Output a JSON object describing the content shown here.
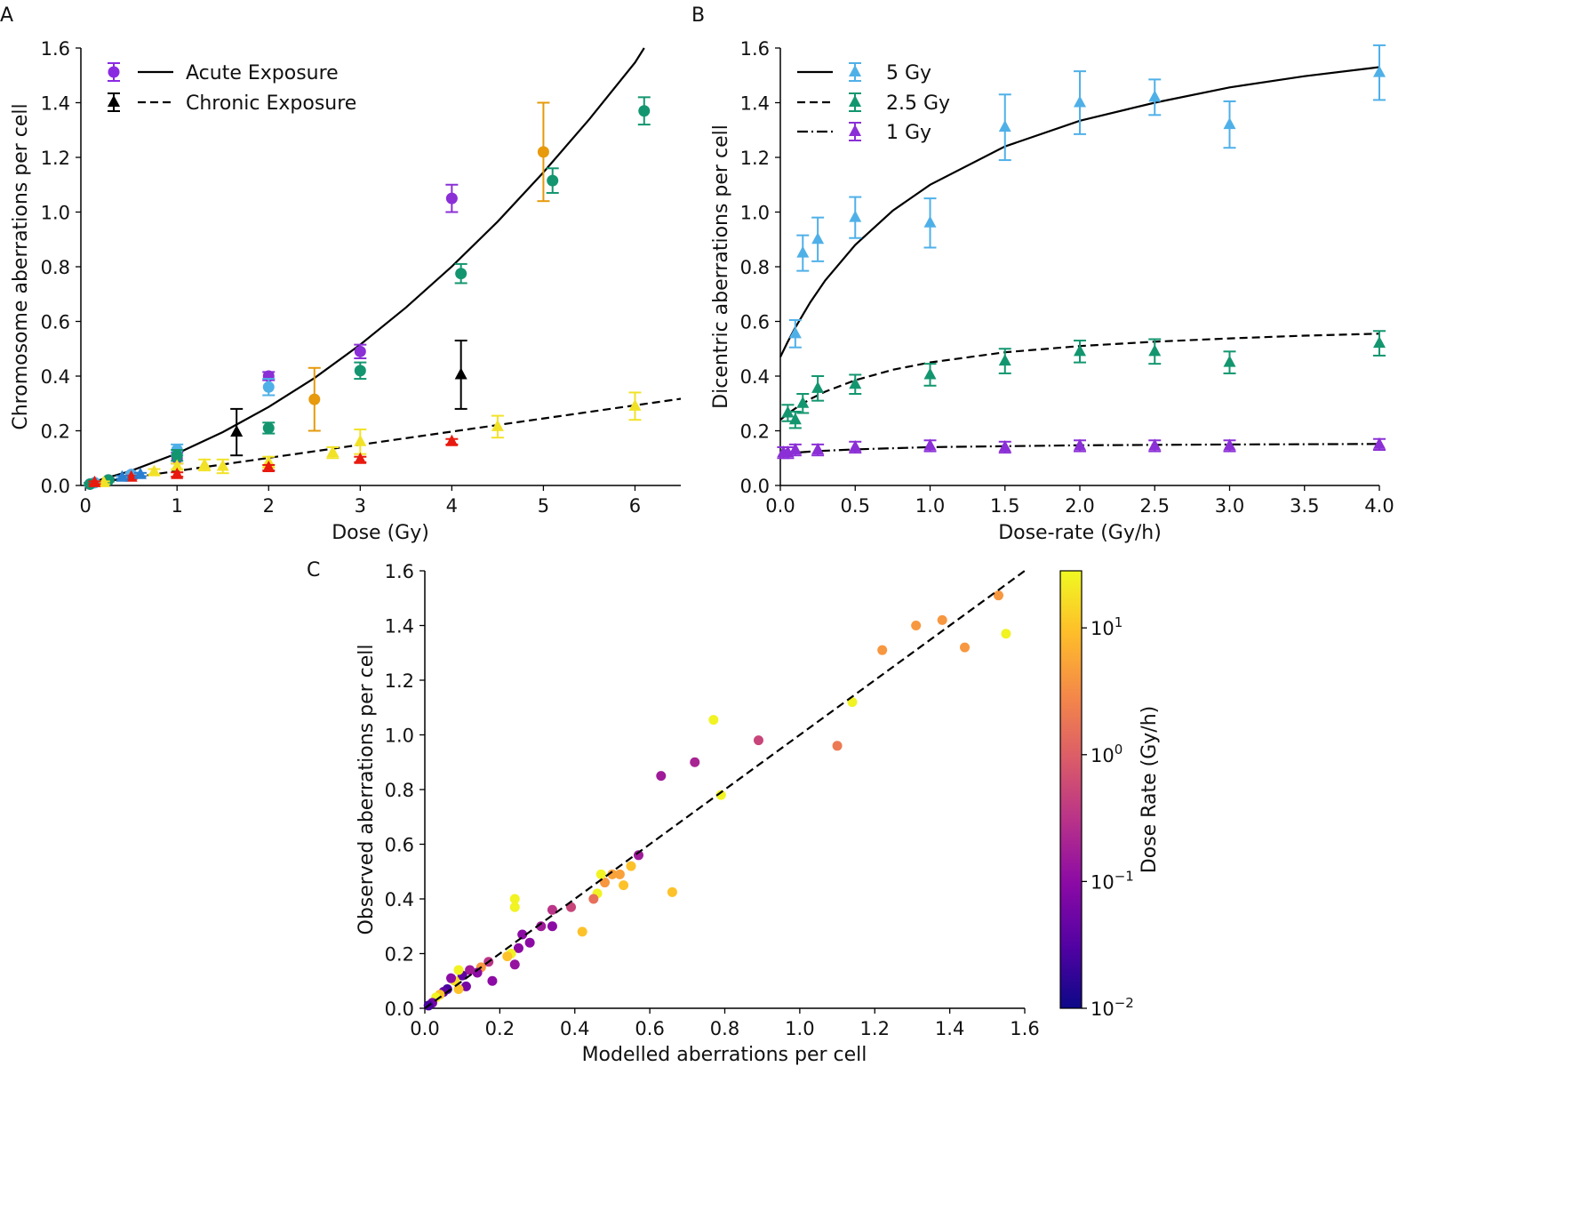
{
  "chart_data": [
    {
      "panel": "A",
      "type": "scatter",
      "xlabel": "Dose (Gy)",
      "ylabel": "Chromosome aberrations per cell",
      "xlim": [
        -0.05,
        6.5
      ],
      "ylim": [
        0,
        1.6
      ],
      "xticks": [
        0,
        1,
        2,
        3,
        4,
        5,
        6
      ],
      "yticks": [
        0.0,
        0.2,
        0.4,
        0.6,
        0.8,
        1.0,
        1.2,
        1.4,
        1.6
      ],
      "legend": {
        "position": "top-left",
        "entries": [
          {
            "label": "Acute Exposure",
            "line": "solid",
            "marker": "circle",
            "color": "#8a2be2"
          },
          {
            "label": "Chronic Exposure",
            "line": "dashed",
            "marker": "triangle",
            "color": "#000000"
          }
        ]
      },
      "lines": [
        {
          "name": "Acute Exposure",
          "style": "solid",
          "x": [
            0,
            0.5,
            1,
            1.5,
            2,
            2.5,
            3,
            3.5,
            4,
            4.5,
            5,
            5.5,
            6,
            6.1
          ],
          "y": [
            0.005,
            0.054,
            0.117,
            0.195,
            0.287,
            0.393,
            0.515,
            0.651,
            0.801,
            0.965,
            1.145,
            1.339,
            1.547,
            1.6
          ]
        },
        {
          "name": "Chronic Exposure",
          "style": "dashed",
          "x": [
            0,
            6.5
          ],
          "y": [
            0.005,
            0.317
          ]
        }
      ],
      "series": [
        {
          "color": "#8b2fd6",
          "marker": "circle",
          "points": [
            [
              0.05,
              0.005,
              0.005
            ],
            [
              0.25,
              0.02,
              0.005
            ],
            [
              0.5,
              0.04,
              0.007
            ],
            [
              1,
              0.1,
              0.02
            ],
            [
              2,
              0.4,
              0.015
            ],
            [
              3,
              0.49,
              0.025
            ],
            [
              4,
              1.05,
              0.05
            ]
          ]
        },
        {
          "color": "#4fb0e8",
          "marker": "circle",
          "points": [
            [
              0.1,
              0.01,
              0.005
            ],
            [
              0.5,
              0.04,
              0.007
            ],
            [
              1,
              0.13,
              0.02
            ],
            [
              2,
              0.36,
              0.03
            ]
          ]
        },
        {
          "color": "#13966f",
          "marker": "circle",
          "points": [
            [
              0.05,
              0.005,
              0.004
            ],
            [
              0.25,
              0.02,
              0.005
            ],
            [
              1,
              0.11,
              0.02
            ],
            [
              2,
              0.21,
              0.02
            ],
            [
              3,
              0.42,
              0.03
            ],
            [
              4.1,
              0.775,
              0.035
            ],
            [
              5.1,
              1.115,
              0.045
            ],
            [
              6.1,
              1.37,
              0.05
            ]
          ]
        },
        {
          "color": "#e69a0c",
          "marker": "circle",
          "points": [
            [
              2.5,
              0.315,
              0.115
            ],
            [
              5,
              1.22,
              0.18
            ]
          ]
        },
        {
          "color": "#000000",
          "marker": "triangle",
          "points": [
            [
              1.65,
              0.195,
              0.085
            ],
            [
              4.1,
              0.405,
              0.125
            ]
          ]
        },
        {
          "color": "#f2e227",
          "marker": "triangle",
          "points": [
            [
              0.2,
              0.01,
              0.005
            ],
            [
              0.75,
              0.05,
              0.01
            ],
            [
              1,
              0.07,
              0.01
            ],
            [
              1.3,
              0.075,
              0.02
            ],
            [
              1.5,
              0.07,
              0.025
            ],
            [
              2,
              0.085,
              0.02
            ],
            [
              2.7,
              0.12,
              0.02
            ],
            [
              3,
              0.16,
              0.045
            ],
            [
              4.5,
              0.215,
              0.04
            ],
            [
              6,
              0.29,
              0.05
            ]
          ]
        },
        {
          "color": "#e8190e",
          "marker": "triangle",
          "points": [
            [
              0.1,
              0.01,
              0.005
            ],
            [
              0.5,
              0.03,
              0.006
            ],
            [
              1,
              0.04,
              0.008
            ],
            [
              2,
              0.065,
              0.01
            ],
            [
              3,
              0.095,
              0.01
            ],
            [
              4,
              0.16,
              0.01
            ]
          ]
        },
        {
          "color": "#2a7fd0",
          "marker": "triangle",
          "points": [
            [
              0.4,
              0.03,
              0.005
            ],
            [
              0.6,
              0.04,
              0.006
            ]
          ]
        }
      ]
    },
    {
      "panel": "B",
      "type": "scatter",
      "xlabel": "Dose-rate (Gy/h)",
      "ylabel": "Dicentric aberrations per cell",
      "xlim": [
        0,
        4.0
      ],
      "ylim": [
        0,
        1.6
      ],
      "xticks": [
        0.0,
        0.5,
        1.0,
        1.5,
        2.0,
        2.5,
        3.0,
        3.5,
        4.0
      ],
      "yticks": [
        0.0,
        0.2,
        0.4,
        0.6,
        0.8,
        1.0,
        1.2,
        1.4,
        1.6
      ],
      "legend": {
        "position": "top-left",
        "entries": [
          {
            "label": "5 Gy",
            "line": "solid",
            "color": "#4fb0e8"
          },
          {
            "label": "2.5 Gy",
            "line": "dashed",
            "color": "#13966f"
          },
          {
            "label": "1 Gy",
            "line": "dashdot",
            "color": "#8b2fd6"
          }
        ]
      },
      "lines": [
        {
          "name": "5 Gy",
          "style": "solid",
          "x": [
            0,
            0.05,
            0.1,
            0.2,
            0.3,
            0.5,
            0.75,
            1,
            1.5,
            2,
            2.5,
            3,
            3.5,
            4
          ],
          "y": [
            0.47,
            0.526,
            0.578,
            0.67,
            0.75,
            0.88,
            1.005,
            1.1,
            1.24,
            1.334,
            1.4,
            1.456,
            1.497,
            1.53
          ]
        },
        {
          "name": "2.5 Gy",
          "style": "dashed",
          "x": [
            0,
            0.05,
            0.1,
            0.2,
            0.3,
            0.5,
            0.75,
            1,
            1.5,
            2,
            2.5,
            3,
            3.5,
            4
          ],
          "y": [
            0.24,
            0.262,
            0.282,
            0.316,
            0.343,
            0.385,
            0.423,
            0.45,
            0.487,
            0.51,
            0.526,
            0.538,
            0.548,
            0.555
          ]
        },
        {
          "name": "1 Gy",
          "style": "dashdot",
          "x": [
            0,
            0.1,
            0.25,
            0.5,
            1,
            2,
            3,
            4
          ],
          "y": [
            0.115,
            0.12,
            0.126,
            0.132,
            0.14,
            0.147,
            0.15,
            0.152
          ]
        }
      ],
      "series": [
        {
          "name": "5 Gy",
          "color": "#4fb0e8",
          "marker": "triangle",
          "points": [
            [
              0.1,
              0.555,
              0.05
            ],
            [
              0.15,
              0.85,
              0.065
            ],
            [
              0.25,
              0.9,
              0.08
            ],
            [
              0.5,
              0.98,
              0.075
            ],
            [
              1,
              0.96,
              0.09
            ],
            [
              1.5,
              1.31,
              0.12
            ],
            [
              2,
              1.4,
              0.115
            ],
            [
              2.5,
              1.42,
              0.065
            ],
            [
              3,
              1.32,
              0.085
            ],
            [
              4,
              1.51,
              0.1
            ]
          ]
        },
        {
          "name": "2.5 Gy",
          "color": "#13966f",
          "marker": "triangle",
          "points": [
            [
              0.05,
              0.265,
              0.03
            ],
            [
              0.1,
              0.24,
              0.03
            ],
            [
              0.15,
              0.3,
              0.035
            ],
            [
              0.25,
              0.355,
              0.045
            ],
            [
              0.5,
              0.37,
              0.035
            ],
            [
              1,
              0.405,
              0.04
            ],
            [
              1.5,
              0.455,
              0.045
            ],
            [
              2,
              0.49,
              0.04
            ],
            [
              2.5,
              0.49,
              0.045
            ],
            [
              3,
              0.45,
              0.04
            ],
            [
              4,
              0.52,
              0.045
            ]
          ]
        },
        {
          "name": "1 Gy",
          "color": "#8b2fd6",
          "marker": "triangle",
          "points": [
            [
              0.02,
              0.12,
              0.02
            ],
            [
              0.05,
              0.12,
              0.02
            ],
            [
              0.1,
              0.13,
              0.02
            ],
            [
              0.25,
              0.13,
              0.02
            ],
            [
              0.5,
              0.14,
              0.02
            ],
            [
              1,
              0.145,
              0.02
            ],
            [
              1.5,
              0.14,
              0.02
            ],
            [
              2,
              0.145,
              0.02
            ],
            [
              2.5,
              0.145,
              0.02
            ],
            [
              3,
              0.145,
              0.02
            ],
            [
              4,
              0.15,
              0.02
            ]
          ]
        }
      ]
    },
    {
      "panel": "C",
      "type": "scatter",
      "xlabel": "Modelled aberrations per cell",
      "ylabel": "Observed aberrations per cell",
      "xlim": [
        0,
        1.6
      ],
      "ylim": [
        0,
        1.6
      ],
      "xticks": [
        0.0,
        0.2,
        0.4,
        0.6,
        0.8,
        1.0,
        1.2,
        1.4,
        1.6
      ],
      "yticks": [
        0.0,
        0.2,
        0.4,
        0.6,
        0.8,
        1.0,
        1.2,
        1.4,
        1.6
      ],
      "identity_line": {
        "style": "dashed",
        "x": [
          0,
          1.6
        ],
        "y": [
          0,
          1.6
        ]
      },
      "colorbar": {
        "label": "Dose Rate (Gy/h)",
        "scale": "log",
        "range_log10": [
          -2,
          1.45
        ],
        "ticks": [
          {
            "base": "10",
            "exp": "1",
            "log": 1
          },
          {
            "base": "10",
            "exp": "0",
            "log": 0
          },
          {
            "base": "10",
            "exp": "−1",
            "log": -1
          },
          {
            "base": "10",
            "exp": "−2",
            "log": -2
          }
        ],
        "colormap": [
          "#0d0887",
          "#5302a3",
          "#8b0aa5",
          "#b83289",
          "#db5c68",
          "#f48849",
          "#febd2a",
          "#f0f921"
        ]
      },
      "points_x_y_log10rate": [
        [
          1.53,
          1.51,
          0.6
        ],
        [
          1.55,
          1.37,
          1.4
        ],
        [
          1.44,
          1.32,
          0.6
        ],
        [
          1.38,
          1.42,
          0.6
        ],
        [
          1.31,
          1.4,
          0.6
        ],
        [
          1.22,
          1.31,
          0.6
        ],
        [
          1.14,
          1.12,
          1.4
        ],
        [
          1.1,
          0.96,
          0.3
        ],
        [
          0.89,
          0.98,
          -0.3
        ],
        [
          0.77,
          1.055,
          1.4
        ],
        [
          0.72,
          0.9,
          -0.7
        ],
        [
          0.63,
          0.85,
          -0.8
        ],
        [
          0.79,
          0.78,
          1.4
        ],
        [
          0.66,
          0.425,
          1.0
        ],
        [
          0.57,
          0.56,
          -0.8
        ],
        [
          0.55,
          0.52,
          1.0
        ],
        [
          0.53,
          0.45,
          1.0
        ],
        [
          0.52,
          0.49,
          0.7
        ],
        [
          0.5,
          0.49,
          0.7
        ],
        [
          0.48,
          0.46,
          0.6
        ],
        [
          0.47,
          0.49,
          1.4
        ],
        [
          0.46,
          0.42,
          1.4
        ],
        [
          0.45,
          0.4,
          0.2
        ],
        [
          0.42,
          0.28,
          1.0
        ],
        [
          0.39,
          0.37,
          -0.3
        ],
        [
          0.34,
          0.36,
          -0.5
        ],
        [
          0.34,
          0.3,
          -1.0
        ],
        [
          0.31,
          0.3,
          -0.8
        ],
        [
          0.28,
          0.24,
          -1.0
        ],
        [
          0.26,
          0.27,
          -1.0
        ],
        [
          0.25,
          0.22,
          -1.0
        ],
        [
          0.24,
          0.4,
          1.4
        ],
        [
          0.24,
          0.37,
          1.4
        ],
        [
          0.24,
          0.16,
          -0.9
        ],
        [
          0.23,
          0.2,
          1.4
        ],
        [
          0.22,
          0.19,
          1.0
        ],
        [
          0.18,
          0.1,
          -1.0
        ],
        [
          0.17,
          0.17,
          -0.5
        ],
        [
          0.15,
          0.15,
          0.6
        ],
        [
          0.14,
          0.13,
          -1.0
        ],
        [
          0.12,
          0.14,
          -0.8
        ],
        [
          0.11,
          0.08,
          -1.2
        ],
        [
          0.1,
          0.12,
          -1.4
        ],
        [
          0.09,
          0.14,
          1.4
        ],
        [
          0.09,
          0.07,
          1.0
        ],
        [
          0.08,
          0.1,
          1.2
        ],
        [
          0.07,
          0.11,
          -1.0
        ],
        [
          0.06,
          0.07,
          -1.6
        ],
        [
          0.05,
          0.06,
          -1.4
        ],
        [
          0.04,
          0.05,
          1.0
        ],
        [
          0.03,
          0.04,
          1.4
        ],
        [
          0.02,
          0.02,
          -1.2
        ],
        [
          0.01,
          0.01,
          -1.6
        ]
      ]
    }
  ]
}
